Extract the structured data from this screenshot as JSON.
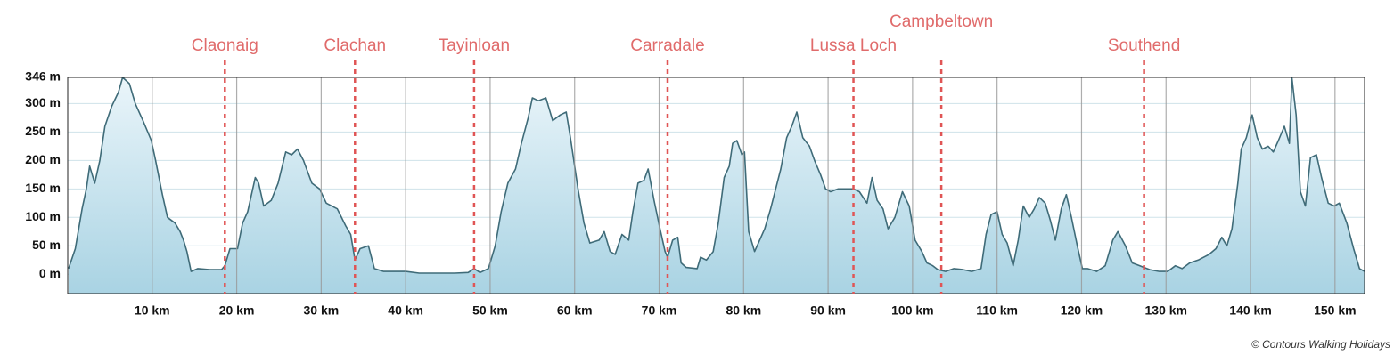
{
  "chart_data": {
    "type": "area",
    "x": [
      0.1,
      0.9,
      1.7,
      2.2,
      2.6,
      3.2,
      3.8,
      4.4,
      5.2,
      6.0,
      6.5,
      7.3,
      8.0,
      8.9,
      9.9,
      10.4,
      11.2,
      11.8,
      12.7,
      13.3,
      13.7,
      14.1,
      14.6,
      15.4,
      16.8,
      18.2,
      18.6,
      19.2,
      20.1,
      20.7,
      21.3,
      22.2,
      22.6,
      23.2,
      24.1,
      24.9,
      25.8,
      26.5,
      27.2,
      27.9,
      28.9,
      29.8,
      30.6,
      31.9,
      32.9,
      33.5,
      34.0,
      34.6,
      35.6,
      36.3,
      37.4,
      38.4,
      40.0,
      41.6,
      43.7,
      45.8,
      47.4,
      48.1,
      48.8,
      49.8,
      50.6,
      51.3,
      52.1,
      53.0,
      53.7,
      54.5,
      55.0,
      55.7,
      56.6,
      57.4,
      58.3,
      59.0,
      59.5,
      60.4,
      61.1,
      61.8,
      62.9,
      63.5,
      64.2,
      64.8,
      65.6,
      66.4,
      66.9,
      67.5,
      68.2,
      68.7,
      69.4,
      70.1,
      70.7,
      71.0,
      71.6,
      72.2,
      72.6,
      73.2,
      74.5,
      74.9,
      75.6,
      76.4,
      77.0,
      77.7,
      78.3,
      78.7,
      79.2,
      79.8,
      80.1,
      80.6,
      81.3,
      81.9,
      82.5,
      83.2,
      83.8,
      84.4,
      85.1,
      85.7,
      86.3,
      87.0,
      87.8,
      88.4,
      89.1,
      89.7,
      90.3,
      91.2,
      92.0,
      93.0,
      93.7,
      94.6,
      95.2,
      95.8,
      96.5,
      97.1,
      97.9,
      98.8,
      99.6,
      100.3,
      101.1,
      101.7,
      102.4,
      103.0,
      103.9,
      104.9,
      106.0,
      107.0,
      108.1,
      108.7,
      109.3,
      110.0,
      110.6,
      111.2,
      111.9,
      112.5,
      113.1,
      113.8,
      114.4,
      115.0,
      115.7,
      116.3,
      116.9,
      117.6,
      118.2,
      118.8,
      119.5,
      120.1,
      120.7,
      121.8,
      122.8,
      123.7,
      124.3,
      125.2,
      126.0,
      126.9,
      127.4,
      128.1,
      129.2,
      130.2,
      131.1,
      131.9,
      132.8,
      133.8,
      135.1,
      135.9,
      136.6,
      137.2,
      137.8,
      138.5,
      138.9,
      139.5,
      140.2,
      140.8,
      141.4,
      142.1,
      142.7,
      143.3,
      144.0,
      144.6,
      144.9,
      145.4,
      145.9,
      146.5,
      147.1,
      147.8,
      148.4,
      149.2,
      149.9,
      150.5,
      151.4,
      152.2,
      152.9,
      153.5
    ],
    "values": [
      10,
      45,
      115,
      150,
      190,
      160,
      200,
      260,
      295,
      320,
      346,
      335,
      300,
      270,
      235,
      200,
      140,
      100,
      90,
      75,
      60,
      40,
      5,
      10,
      8,
      8,
      15,
      45,
      45,
      90,
      110,
      170,
      160,
      120,
      130,
      160,
      215,
      210,
      220,
      200,
      160,
      150,
      125,
      115,
      85,
      70,
      25,
      45,
      50,
      10,
      5,
      5,
      5,
      2,
      2,
      2,
      3,
      10,
      3,
      10,
      50,
      110,
      160,
      185,
      230,
      275,
      310,
      305,
      310,
      270,
      280,
      285,
      240,
      150,
      90,
      55,
      60,
      75,
      40,
      35,
      70,
      60,
      110,
      160,
      165,
      185,
      130,
      80,
      40,
      30,
      60,
      65,
      20,
      12,
      10,
      30,
      25,
      40,
      90,
      170,
      190,
      230,
      235,
      210,
      215,
      75,
      40,
      60,
      80,
      115,
      150,
      185,
      240,
      260,
      285,
      240,
      225,
      200,
      175,
      150,
      145,
      150,
      150,
      150,
      145,
      125,
      170,
      130,
      115,
      80,
      100,
      145,
      120,
      60,
      40,
      20,
      15,
      8,
      5,
      10,
      8,
      5,
      10,
      70,
      105,
      110,
      70,
      55,
      15,
      60,
      120,
      100,
      115,
      135,
      125,
      95,
      60,
      115,
      140,
      100,
      50,
      10,
      10,
      5,
      15,
      60,
      75,
      50,
      20,
      15,
      12,
      8,
      5,
      5,
      15,
      10,
      20,
      25,
      35,
      45,
      65,
      50,
      80,
      160,
      220,
      240,
      280,
      240,
      220,
      225,
      215,
      235,
      260,
      230,
      345,
      280,
      145,
      120,
      205,
      210,
      170,
      125,
      120,
      125,
      90,
      45,
      10,
      5
    ],
    "xlim": [
      0,
      153.5
    ],
    "ylim": [
      -34,
      346
    ],
    "xticks": [
      {
        "value": 10,
        "label": "10 km"
      },
      {
        "value": 20,
        "label": "20 km"
      },
      {
        "value": 30,
        "label": "30 km"
      },
      {
        "value": 40,
        "label": "40 km"
      },
      {
        "value": 50,
        "label": "50 km"
      },
      {
        "value": 60,
        "label": "60 km"
      },
      {
        "value": 70,
        "label": "70 km"
      },
      {
        "value": 80,
        "label": "80 km"
      },
      {
        "value": 90,
        "label": "90 km"
      },
      {
        "value": 100,
        "label": "100 km"
      },
      {
        "value": 110,
        "label": "110 km"
      },
      {
        "value": 120,
        "label": "120 km"
      },
      {
        "value": 130,
        "label": "130 km"
      },
      {
        "value": 140,
        "label": "140 km"
      },
      {
        "value": 150,
        "label": "150 km"
      }
    ],
    "yticks": [
      {
        "value": 0,
        "label": "0 m"
      },
      {
        "value": 50,
        "label": "50 m"
      },
      {
        "value": 100,
        "label": "100 m"
      },
      {
        "value": 150,
        "label": "150 m"
      },
      {
        "value": 200,
        "label": "200 m"
      },
      {
        "value": 250,
        "label": "250 m"
      },
      {
        "value": 300,
        "label": "300 m"
      },
      {
        "value": 346,
        "label": "346 m"
      }
    ],
    "grid": true,
    "color": "#3f6b78",
    "markers": [
      {
        "label": "Claonaig",
        "x": 18.6
      },
      {
        "label": "Clachan",
        "x": 34.0
      },
      {
        "label": "Tayinloan",
        "x": 48.1
      },
      {
        "label": "Carradale",
        "x": 71.0
      },
      {
        "label": "Lussa Loch",
        "x": 93.0
      },
      {
        "label": "Campbeltown",
        "x": 103.4
      },
      {
        "label": "Southend",
        "x": 127.4
      }
    ],
    "marker_color": "#e05555",
    "credit": "© Contours Walking Holidays"
  }
}
